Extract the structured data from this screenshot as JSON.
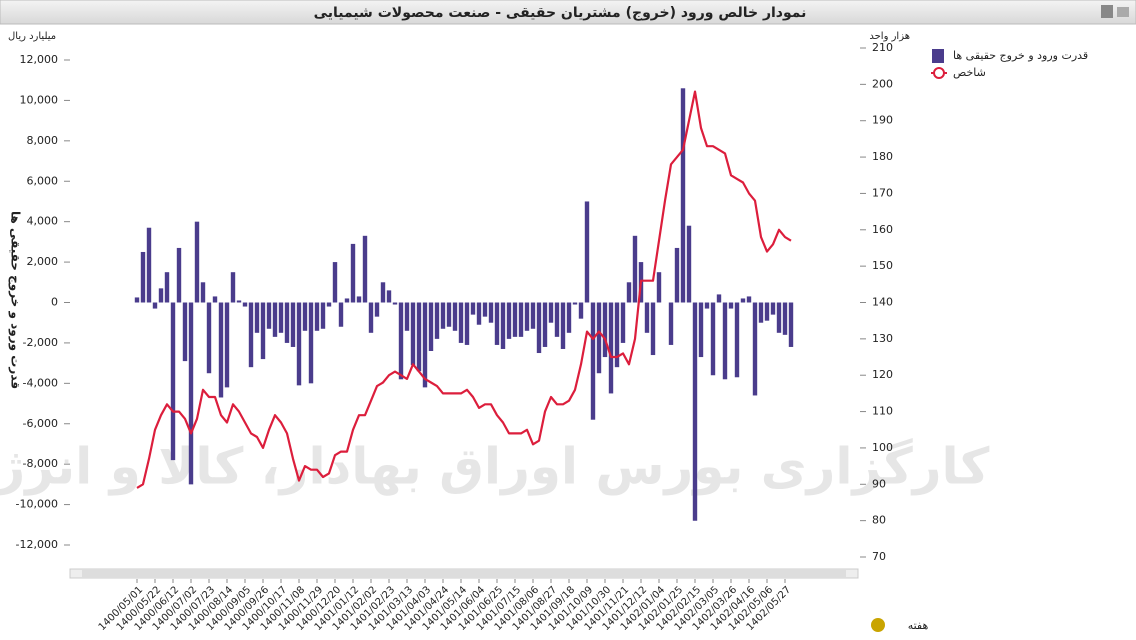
{
  "chart_data": {
    "type": "bar-line",
    "title": "نمودار خالص ورود (خروج) مشتریان حقیقی - صنعت محصولات شیمیایی",
    "y_unit": "میلیارد ریال",
    "y2_unit": "هزار واحد",
    "y_label": "قدرت ورود و خروج حقیقی ها",
    "x_label": "هفته",
    "watermark": "کارگزاری بورس اوراق بهادار، کالا و انرژی",
    "categories": [
      "1400/05/01",
      null,
      null,
      "1400/05/22",
      null,
      null,
      "1400/06/12",
      null,
      null,
      "1400/07/02",
      null,
      null,
      "1400/07/23",
      null,
      null,
      "1400/08/14",
      null,
      null,
      "1400/09/05",
      null,
      null,
      "1400/09/26",
      null,
      null,
      "1400/10/17",
      null,
      null,
      "1400/11/08",
      null,
      null,
      "1400/11/29",
      null,
      null,
      "1400/12/20",
      null,
      null,
      "1401/01/12",
      null,
      null,
      "1401/02/02",
      null,
      null,
      "1401/02/23",
      null,
      null,
      "1401/03/13",
      null,
      null,
      "1401/04/03",
      null,
      null,
      "1401/04/24",
      null,
      null,
      "1401/05/14",
      null,
      null,
      "1401/06/04",
      null,
      null,
      "1401/06/25",
      null,
      null,
      "1401/07/15",
      null,
      null,
      "1401/08/06",
      null,
      null,
      "1401/08/27",
      null,
      null,
      "1401/09/18",
      null,
      null,
      "1401/10/09",
      null,
      null,
      "1401/10/30",
      null,
      null,
      "1401/11/21",
      null,
      null,
      "1401/12/12",
      null,
      null,
      "1402/01/04",
      null,
      null,
      "1402/01/25",
      null,
      null,
      "1402/02/15",
      null,
      null,
      "1402/03/05",
      null,
      null,
      "1402/03/26",
      null,
      null,
      "1402/04/16",
      null,
      null,
      "1402/05/06",
      null,
      null,
      "1402/05/27",
      null
    ],
    "series": [
      {
        "name": "قدرت ورود و خروج حقیقی ها",
        "color": "#4a3c8c",
        "kind": "bar",
        "values": [
          250,
          2500,
          3700,
          -300,
          700,
          1500,
          -7800,
          2700,
          -2900,
          -9000,
          4000,
          1000,
          -3500,
          300,
          -4700,
          -4200,
          1500,
          100,
          -200,
          -3200,
          -1500,
          -2800,
          -1300,
          -1700,
          -1500,
          -2000,
          -2200,
          -4100,
          -1400,
          -4000,
          -1400,
          -1300,
          -200,
          2000,
          -1200,
          200,
          2900,
          300,
          3300,
          -1500,
          -700,
          1000,
          600,
          -100,
          -3800,
          -1400,
          -3100,
          -3400,
          -4200,
          -2400,
          -1800,
          -1300,
          -1200,
          -1400,
          -2000,
          -2100,
          -600,
          -1100,
          -700,
          -1000,
          -2100,
          -2300,
          -1800,
          -1700,
          -1700,
          -1400,
          -1300,
          -2500,
          -2200,
          -1000,
          -1700,
          -2300,
          -1500,
          -100,
          -800,
          5000,
          -5800,
          -3500,
          -2700,
          -4500,
          -3200,
          -2000,
          1000,
          3300,
          2000,
          -1500,
          -2600,
          1500,
          0,
          -2100,
          2700,
          10600,
          3800,
          -10800,
          -2700,
          -300,
          -3600,
          400,
          -3800,
          -300,
          -3700,
          200,
          300,
          -4600,
          -1000,
          -900,
          -600,
          -1500,
          -1600,
          -2200
        ]
      },
      {
        "name": "شاخص",
        "color": "#dc1e3c",
        "kind": "line",
        "axis": "y2",
        "values": [
          89,
          90,
          97,
          105,
          109,
          112,
          110,
          110,
          108,
          104,
          108,
          116,
          114,
          114,
          109,
          107,
          112,
          110,
          107,
          104,
          103,
          100,
          105,
          109,
          107,
          104,
          97,
          91,
          95,
          94,
          94,
          92,
          93,
          98,
          99,
          99,
          105,
          109,
          109,
          113,
          117,
          118,
          120,
          121,
          120,
          119,
          123,
          121,
          119,
          118,
          117,
          115,
          115,
          115,
          115,
          116,
          114,
          111,
          112,
          112,
          109,
          107,
          104,
          104,
          104,
          105,
          101,
          102,
          110,
          114,
          112,
          112,
          113,
          116,
          123,
          132,
          130,
          132,
          130,
          125,
          125,
          126,
          123,
          130,
          146,
          146,
          146,
          157,
          168,
          178,
          180,
          182,
          190,
          198,
          188,
          183,
          183,
          182,
          181,
          175,
          174,
          173,
          170,
          168,
          158,
          154,
          156,
          160,
          158,
          157
        ]
      }
    ],
    "ylim": [
      -12000,
      12000
    ],
    "yticks": [
      {
        "value": -12000,
        "label": "-12,000"
      },
      {
        "value": -10000,
        "label": "-10,000"
      },
      {
        "value": -8000,
        "label": "-8,000"
      },
      {
        "value": -6000,
        "label": "-6,000"
      },
      {
        "value": -4000,
        "label": "-4,000"
      },
      {
        "value": -2000,
        "label": "-2,000"
      },
      0,
      {
        "value": 2000,
        "label": "2,000"
      },
      {
        "value": 4000,
        "label": "4,000"
      },
      {
        "value": 6000,
        "label": "6,000"
      },
      {
        "value": 8000,
        "label": "8,000"
      },
      {
        "value": 10000,
        "label": "10,000"
      },
      {
        "value": 12000,
        "label": "12,000"
      }
    ],
    "y2lim": [
      70,
      210
    ],
    "y2ticks": [
      70,
      80,
      90,
      100,
      110,
      120,
      130,
      140,
      150,
      160,
      170,
      180,
      190,
      200,
      210
    ],
    "grid": false
  }
}
